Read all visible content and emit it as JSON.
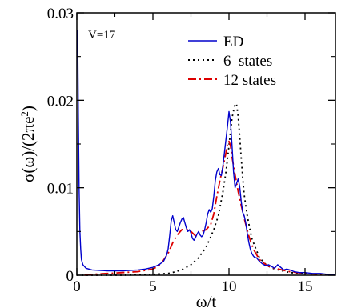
{
  "chart_data": {
    "type": "line",
    "xlabel": "ω/t",
    "ylabel": "σ(ω)/(2πe²)",
    "ylabel_parts": {
      "main": "σ(ω)/(2πe",
      "sup": "2",
      "tail": ")"
    },
    "xlim": [
      0,
      17
    ],
    "ylim": [
      0,
      0.03
    ],
    "x_ticks": [
      0,
      5,
      10,
      15
    ],
    "x_tick_labels": [
      "0",
      "5",
      "10",
      "15"
    ],
    "y_ticks": [
      0,
      0.01,
      0.02,
      0.03
    ],
    "y_tick_labels": [
      "0",
      "0.01",
      "0.02",
      "0.03"
    ],
    "annotation": "V=17",
    "legend_position": "top-right",
    "grid": false,
    "series": [
      {
        "name": "ED",
        "color": "#0000cc",
        "dash": "solid",
        "x": [
          0.05,
          0.1,
          0.15,
          0.2,
          0.25,
          0.3,
          0.4,
          0.6,
          1.0,
          2.0,
          3.0,
          4.0,
          4.5,
          5.0,
          5.4,
          5.7,
          5.9,
          6.0,
          6.1,
          6.2,
          6.3,
          6.4,
          6.5,
          6.6,
          6.7,
          6.8,
          6.9,
          7.0,
          7.1,
          7.2,
          7.3,
          7.4,
          7.5,
          7.6,
          7.7,
          7.8,
          7.9,
          8.0,
          8.1,
          8.2,
          8.3,
          8.4,
          8.5,
          8.6,
          8.7,
          8.8,
          8.9,
          9.0,
          9.1,
          9.2,
          9.3,
          9.4,
          9.5,
          9.6,
          9.7,
          9.8,
          9.9,
          10.0,
          10.1,
          10.2,
          10.3,
          10.4,
          10.5,
          10.6,
          10.7,
          10.8,
          10.9,
          11.0,
          11.1,
          11.2,
          11.3,
          11.4,
          11.5,
          11.6,
          11.7,
          11.8,
          11.9,
          12.0,
          12.2,
          12.4,
          12.6,
          12.8,
          13.0,
          13.2,
          13.4,
          13.6,
          13.8,
          14.0,
          14.3,
          14.6,
          15.0,
          15.5,
          16.0,
          16.5,
          17.0
        ],
        "y": [
          0.028,
          0.018,
          0.01,
          0.005,
          0.003,
          0.0018,
          0.0012,
          0.0008,
          0.0006,
          0.0005,
          0.0005,
          0.0006,
          0.0007,
          0.0009,
          0.0012,
          0.0016,
          0.0023,
          0.003,
          0.0045,
          0.0062,
          0.0068,
          0.006,
          0.0052,
          0.005,
          0.0055,
          0.006,
          0.0064,
          0.0066,
          0.006,
          0.0054,
          0.005,
          0.0052,
          0.0048,
          0.0042,
          0.004,
          0.0043,
          0.0047,
          0.005,
          0.0046,
          0.0044,
          0.0046,
          0.0052,
          0.006,
          0.007,
          0.0075,
          0.0072,
          0.0076,
          0.009,
          0.0108,
          0.0118,
          0.0122,
          0.0115,
          0.0114,
          0.0125,
          0.014,
          0.0155,
          0.017,
          0.0187,
          0.0175,
          0.0148,
          0.0118,
          0.01,
          0.0105,
          0.011,
          0.0102,
          0.0085,
          0.0072,
          0.0068,
          0.006,
          0.0048,
          0.0038,
          0.003,
          0.0025,
          0.0022,
          0.002,
          0.002,
          0.0018,
          0.0016,
          0.0013,
          0.0011,
          0.0012,
          0.001,
          0.0008,
          0.0012,
          0.0009,
          0.0006,
          0.0007,
          0.0006,
          0.0004,
          0.0003,
          0.0003,
          0.0002,
          0.0002,
          0.0001,
          0.0001
        ]
      },
      {
        "name": "6  states",
        "color": "#000000",
        "dash": "dot",
        "x": [
          0.0,
          1.0,
          2.0,
          3.0,
          4.0,
          5.0,
          5.5,
          6.0,
          6.5,
          7.0,
          7.5,
          8.0,
          8.5,
          9.0,
          9.3,
          9.6,
          9.8,
          10.0,
          10.2,
          10.4,
          10.5,
          10.6,
          10.7,
          10.8,
          10.9,
          11.0,
          11.2,
          11.5,
          12.0,
          12.5,
          13.0,
          14.0,
          15.0,
          16.0,
          17.0
        ],
        "y": [
          0.0,
          0.0,
          0.0,
          0.0,
          5e-05,
          0.0001,
          0.00015,
          0.0002,
          0.0004,
          0.0007,
          0.0012,
          0.002,
          0.0032,
          0.0052,
          0.0068,
          0.0095,
          0.0118,
          0.0148,
          0.018,
          0.0196,
          0.0195,
          0.0182,
          0.016,
          0.0135,
          0.0112,
          0.0092,
          0.0068,
          0.0042,
          0.002,
          0.0011,
          0.0007,
          0.0003,
          0.0002,
          0.0001,
          5e-05
        ]
      },
      {
        "name": "12 states",
        "color": "#dd0000",
        "dash": "dashdot",
        "x": [
          0.5,
          1.0,
          2.0,
          3.0,
          4.0,
          5.0,
          5.5,
          6.0,
          6.3,
          6.6,
          6.9,
          7.2,
          7.5,
          7.8,
          8.0,
          8.2,
          8.5,
          8.8,
          9.0,
          9.2,
          9.4,
          9.6,
          9.8,
          9.9,
          10.0,
          10.1,
          10.2,
          10.4,
          10.6,
          10.8,
          11.0,
          11.3,
          11.6,
          12.0,
          12.5,
          13.0,
          14.0,
          15.0,
          16.0,
          17.0
        ],
        "y": [
          0.0,
          0.0001,
          0.0002,
          0.0003,
          0.0004,
          0.0007,
          0.0012,
          0.0025,
          0.0037,
          0.0046,
          0.0052,
          0.0053,
          0.005,
          0.0045,
          0.0045,
          0.005,
          0.0052,
          0.0058,
          0.007,
          0.009,
          0.0108,
          0.0123,
          0.014,
          0.015,
          0.0153,
          0.0148,
          0.0135,
          0.0115,
          0.0096,
          0.008,
          0.0065,
          0.0045,
          0.003,
          0.0018,
          0.0011,
          0.0008,
          0.0004,
          0.0002,
          0.0001,
          0.0001
        ]
      }
    ]
  }
}
